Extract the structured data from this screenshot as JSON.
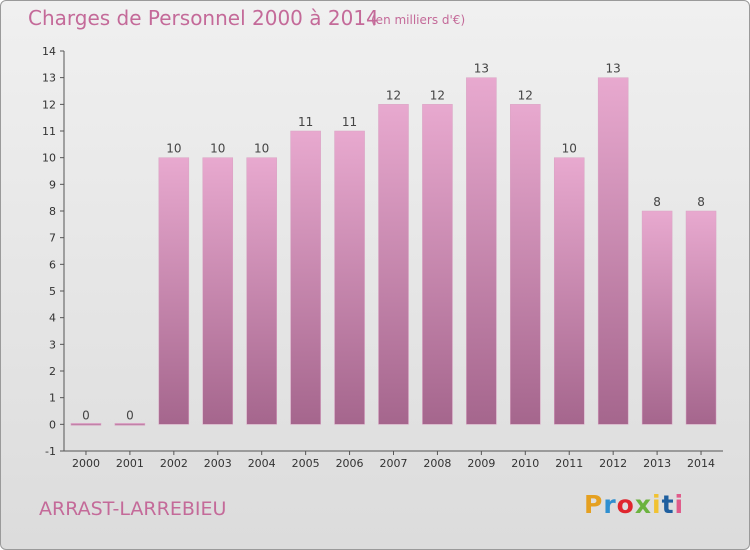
{
  "header": {
    "title": "Charges de Personnel 2000 à 2014",
    "subtitle": "(en milliers d'€)"
  },
  "footer": {
    "commune": "ARRAST-LARREBIEU",
    "logo_text": "Proxiti",
    "logo_colors": [
      "#e5a020",
      "#2f8fd0",
      "#e0262e",
      "#6cb33f",
      "#f1c232",
      "#1f5f9f",
      "#e05a8a"
    ]
  },
  "colors": {
    "bar_top": "#e8a9cf",
    "bar_bottom": "#a5668d",
    "title": "#c46a99"
  },
  "chart_data": {
    "type": "bar",
    "title": "Charges de Personnel 2000 à 2014",
    "subtitle": "(en milliers d'€)",
    "categories": [
      "2000",
      "2001",
      "2002",
      "2003",
      "2004",
      "2005",
      "2006",
      "2007",
      "2008",
      "2009",
      "2010",
      "2011",
      "2012",
      "2013",
      "2014"
    ],
    "values": [
      0,
      0,
      10,
      10,
      10,
      11,
      11,
      12,
      12,
      13,
      12,
      10,
      13,
      8,
      8
    ],
    "ylim": [
      -1,
      14
    ],
    "yticks": [
      -1,
      0,
      1,
      2,
      3,
      4,
      5,
      6,
      7,
      8,
      9,
      10,
      11,
      12,
      13,
      14
    ],
    "grid": false,
    "data_labels": true
  }
}
